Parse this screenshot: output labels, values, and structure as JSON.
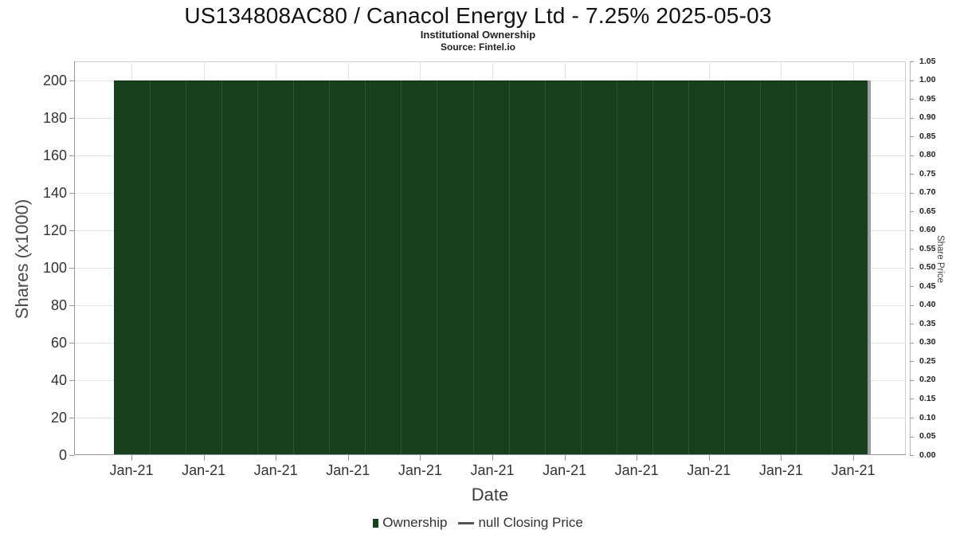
{
  "header": {
    "title": "US134808AC80 / Canacol Energy Ltd - 7.25% 2025-05-03",
    "subtitle": "Institutional Ownership",
    "source": "Source: Fintel.io"
  },
  "chart_data": {
    "type": "bar",
    "title": "US134808AC80 / Canacol Energy Ltd - 7.25% 2025-05-03",
    "subtitle": "Institutional Ownership",
    "source": "Source: Fintel.io",
    "grid": true,
    "legend_position": "bottom",
    "x_axis": {
      "label": "Date",
      "tick_labels": [
        "Jan-21",
        "Jan-21",
        "Jan-21",
        "Jan-21",
        "Jan-21",
        "Jan-21",
        "Jan-21",
        "Jan-21",
        "Jan-21",
        "Jan-21",
        "Jan-21"
      ]
    },
    "y_axis_left": {
      "label": "Shares (x1000)",
      "ticks": [
        0,
        20,
        40,
        60,
        80,
        100,
        120,
        140,
        160,
        180,
        200
      ],
      "ylim": [
        0,
        210
      ]
    },
    "y_axis_right": {
      "label": "Share Price",
      "ticks": [
        "0.00",
        "0.05",
        "0.10",
        "0.15",
        "0.20",
        "0.25",
        "0.30",
        "0.35",
        "0.40",
        "0.45",
        "0.50",
        "0.55",
        "0.60",
        "0.65",
        "0.70",
        "0.75",
        "0.80",
        "0.85",
        "0.90",
        "0.95",
        "1.00",
        "1.05"
      ],
      "ylim": [
        0,
        1.05
      ]
    },
    "series": [
      {
        "name": "Ownership",
        "type": "bar",
        "color": "#16401E",
        "values": [
          200,
          200,
          200,
          200,
          200,
          200,
          200,
          200,
          200,
          200,
          200,
          200,
          200,
          200,
          200,
          200,
          200,
          200,
          200,
          200,
          200
        ]
      },
      {
        "name": "null Closing Price",
        "type": "line",
        "color": "#555555",
        "values": []
      }
    ]
  },
  "legend": {
    "items": [
      {
        "label": "Ownership",
        "color": "#16401E"
      },
      {
        "label": "null Closing Price",
        "color": "#555555"
      }
    ]
  },
  "colors": {
    "bar_green": "#16401E",
    "bar_separator": "rgba(255,255,255,0.10)",
    "bar_edge": "rgba(0,0,0,0.28)",
    "shadow_gray": "#9E9E9E",
    "gridline": "#E4E4E4",
    "axis_line": "#9A9A9A"
  }
}
